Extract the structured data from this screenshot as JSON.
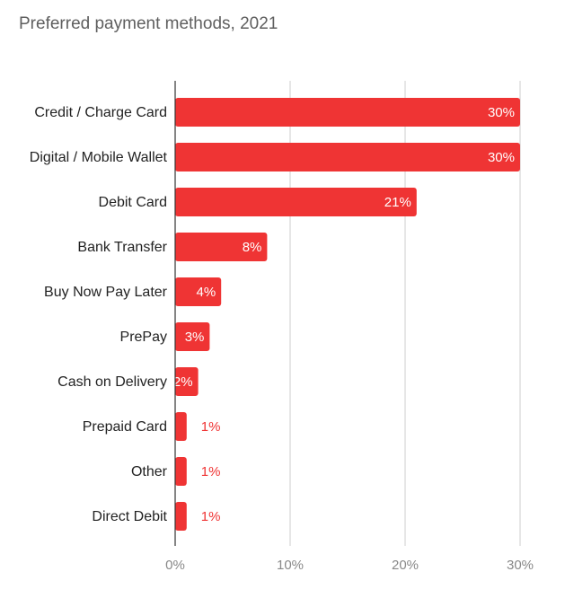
{
  "chart_data": {
    "type": "bar",
    "orientation": "horizontal",
    "title": "Preferred payment methods, 2021",
    "categories": [
      "Credit / Charge Card",
      "Digital / Mobile Wallet",
      "Debit Card",
      "Bank Transfer",
      "Buy Now Pay Later",
      "PrePay",
      "Cash on Delivery",
      "Prepaid Card",
      "Other",
      "Direct Debit"
    ],
    "values": [
      30,
      30,
      21,
      8,
      4,
      3,
      2,
      1,
      1,
      1
    ],
    "value_labels": [
      "30%",
      "30%",
      "21%",
      "8%",
      "4%",
      "3%",
      "2%",
      "1%",
      "1%",
      "1%"
    ],
    "xlim": [
      0,
      30
    ],
    "xticks": [
      0,
      10,
      20,
      30
    ],
    "xtick_labels": [
      "0%",
      "10%",
      "20%",
      "30%"
    ],
    "grid": true,
    "bar_color": "#ef3434",
    "grid_color": "#cccccc",
    "axis_color": "#333333"
  }
}
